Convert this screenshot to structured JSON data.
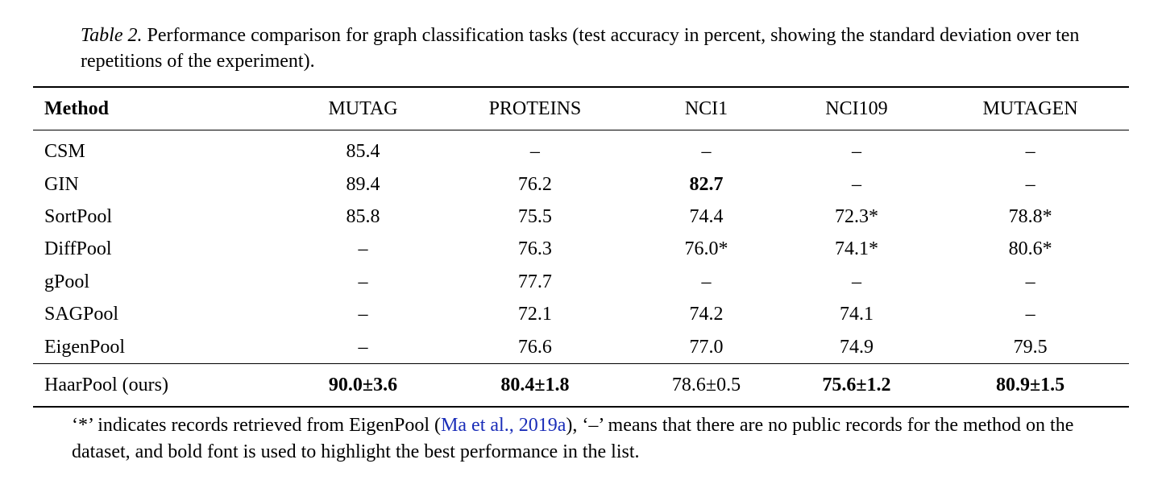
{
  "caption": {
    "table_label": "Table 2.",
    "text_after_label": " Performance comparison for graph classification tasks (test accuracy in percent, showing the standard deviation over ten repetitions of the experiment)."
  },
  "table": {
    "columns": [
      "Method",
      "MUTAG",
      "PROTEINS",
      "NCI1",
      "NCI109",
      "MUTAGEN"
    ],
    "rows": [
      {
        "method": "CSM",
        "vals": [
          "85.4",
          "–",
          "–",
          "–",
          "–"
        ],
        "bold": [
          false,
          false,
          false,
          false,
          false
        ]
      },
      {
        "method": "GIN",
        "vals": [
          "89.4",
          "76.2",
          "82.7",
          "–",
          "–"
        ],
        "bold": [
          false,
          false,
          true,
          false,
          false
        ]
      },
      {
        "method": "SortPool",
        "vals": [
          "85.8",
          "75.5",
          "74.4",
          "72.3*",
          "78.8*"
        ],
        "bold": [
          false,
          false,
          false,
          false,
          false
        ]
      },
      {
        "method": "DiffPool",
        "vals": [
          "–",
          "76.3",
          "76.0*",
          "74.1*",
          "80.6*"
        ],
        "bold": [
          false,
          false,
          false,
          false,
          false
        ]
      },
      {
        "method": "gPool",
        "vals": [
          "–",
          "77.7",
          "–",
          "–",
          "–"
        ],
        "bold": [
          false,
          false,
          false,
          false,
          false
        ]
      },
      {
        "method": "SAGPool",
        "vals": [
          "–",
          "72.1",
          "74.2",
          "74.1",
          "–"
        ],
        "bold": [
          false,
          false,
          false,
          false,
          false
        ]
      },
      {
        "method": "EigenPool",
        "vals": [
          "–",
          "76.6",
          "77.0",
          "74.9",
          "79.5"
        ],
        "bold": [
          false,
          false,
          false,
          false,
          false
        ]
      }
    ],
    "final_row": {
      "method": "HaarPool (ours)",
      "vals": [
        "90.0±3.6",
        "80.4±1.8",
        "78.6±0.5",
        "75.6±1.2",
        "80.9±1.5"
      ],
      "bold": [
        true,
        true,
        false,
        true,
        true
      ]
    }
  },
  "footnote": {
    "before_cite": "‘*’ indicates records retrieved from EigenPool (",
    "cite": "Ma et al., 2019a",
    "after_cite": "), ‘–’ means that there are no public records for the method on the dataset, and bold font is used to highlight the best performance in the list."
  },
  "colors": {
    "text": "#000000",
    "background": "#ffffff",
    "cite": "#1a2db8",
    "rule": "#000000"
  },
  "fonts": {
    "family": "Times New Roman",
    "body_size_pt": 18
  }
}
